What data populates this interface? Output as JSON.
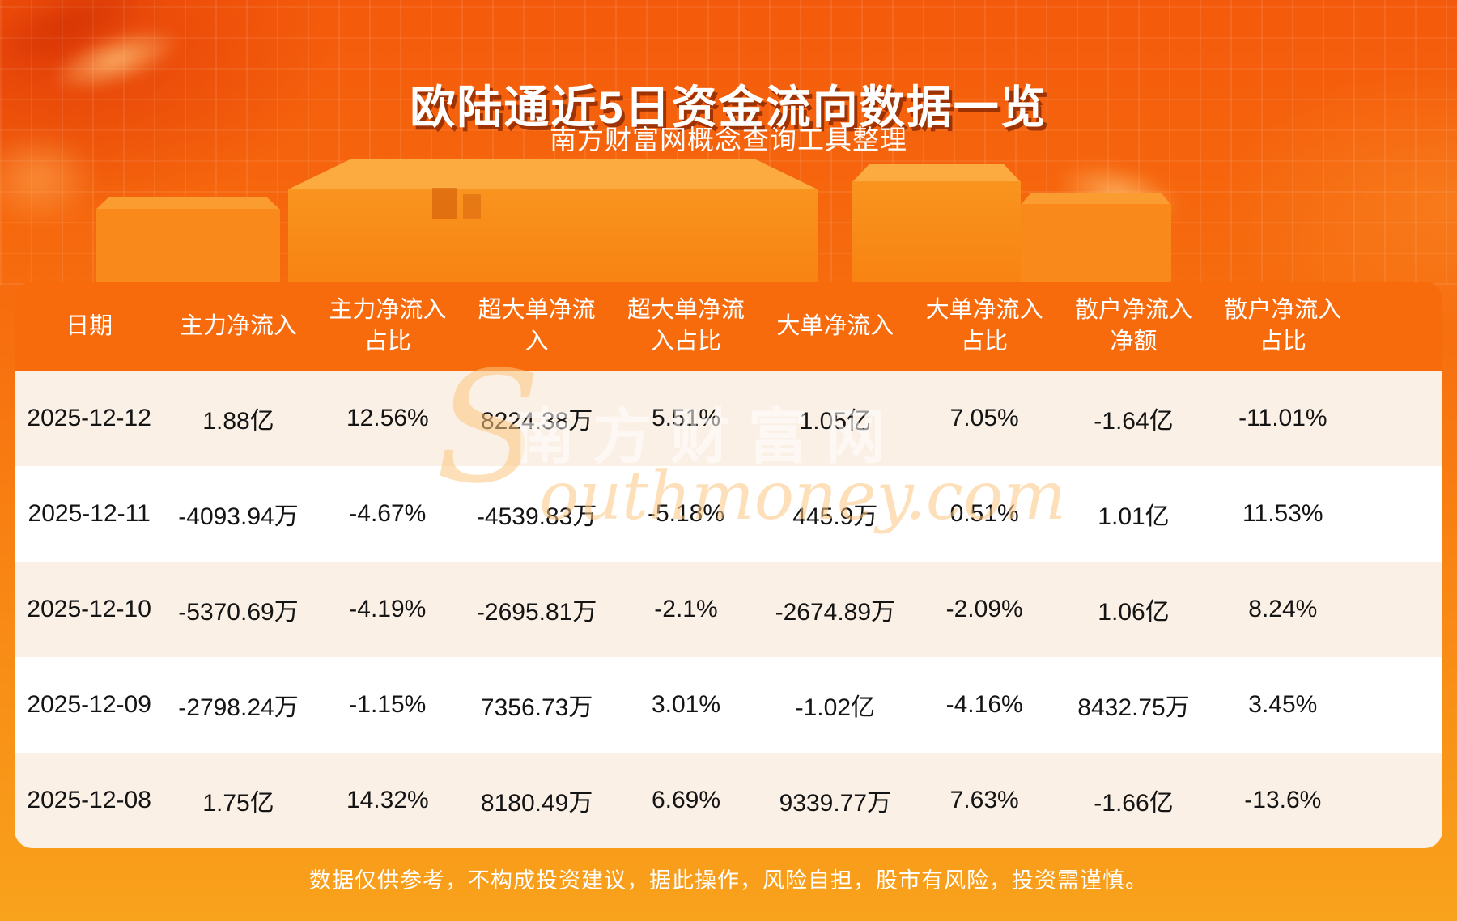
{
  "title": "欧陆通近5日资金流向数据一览",
  "subtitle": "南方财富网概念查询工具整理",
  "watermark": {
    "initial": "S",
    "cjk": "南方财富网",
    "rest": "outhmoney.com"
  },
  "footer": {
    "disclaimer": "数据仅供参考，不构成投资建议，据此操作，风险自担，股市有风险，投资需谨慎。"
  },
  "colors": {
    "background_orange_top": "#f45a0b",
    "background_orange_bottom": "#f9a21c",
    "header_bg": "#f76b0c",
    "row_cream": "#fbf0e5",
    "row_white": "#ffffff",
    "title_text": "#ffffff",
    "title_shadow": "#681600",
    "data_text": "#141414"
  },
  "chart_data": {
    "type": "table",
    "title": "欧陆通近5日资金流向数据一览",
    "columns": [
      "日期",
      "主力净流入",
      "主力净流入占比",
      "超大单净流入",
      "超大单净流入占比",
      "大单净流入",
      "大单净流入占比",
      "散户净流入净额",
      "散户净流入占比"
    ],
    "header_display": [
      "日期",
      "主力净流入",
      "主力净流入\n占比",
      "超大单净流\n入",
      "超大单净流\n入占比",
      "大单净流入",
      "大单净流入\n占比",
      "散户净流入\n净额",
      "散户净流入\n占比"
    ],
    "rows": [
      [
        "2025-12-12",
        "1.88亿",
        "12.56%",
        "8224.38万",
        "5.51%",
        "1.05亿",
        "7.05%",
        "-1.64亿",
        "-11.01%"
      ],
      [
        "2025-12-11",
        "-4093.94万",
        "-4.67%",
        "-4539.83万",
        "-5.18%",
        "445.9万",
        "0.51%",
        "1.01亿",
        "11.53%"
      ],
      [
        "2025-12-10",
        "-5370.69万",
        "-4.19%",
        "-2695.81万",
        "-2.1%",
        "-2674.89万",
        "-2.09%",
        "1.06亿",
        "8.24%"
      ],
      [
        "2025-12-09",
        "-2798.24万",
        "-1.15%",
        "7356.73万",
        "3.01%",
        "-1.02亿",
        "-4.16%",
        "8432.75万",
        "3.45%"
      ],
      [
        "2025-12-08",
        "1.75亿",
        "14.32%",
        "8180.49万",
        "6.69%",
        "9339.77万",
        "7.63%",
        "-1.66亿",
        "-13.6%"
      ]
    ]
  }
}
